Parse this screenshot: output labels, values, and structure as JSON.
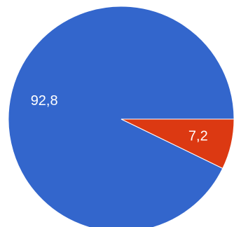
{
  "chart_data": {
    "type": "pie",
    "title": "",
    "slices": [
      {
        "label": "92,8",
        "value": 92.8,
        "color": "#3366cc"
      },
      {
        "label": "7,2",
        "value": 7.2,
        "color": "#dc3912"
      }
    ],
    "start_angle_deg": 0,
    "direction": "counterclockwise",
    "legend": "none"
  }
}
